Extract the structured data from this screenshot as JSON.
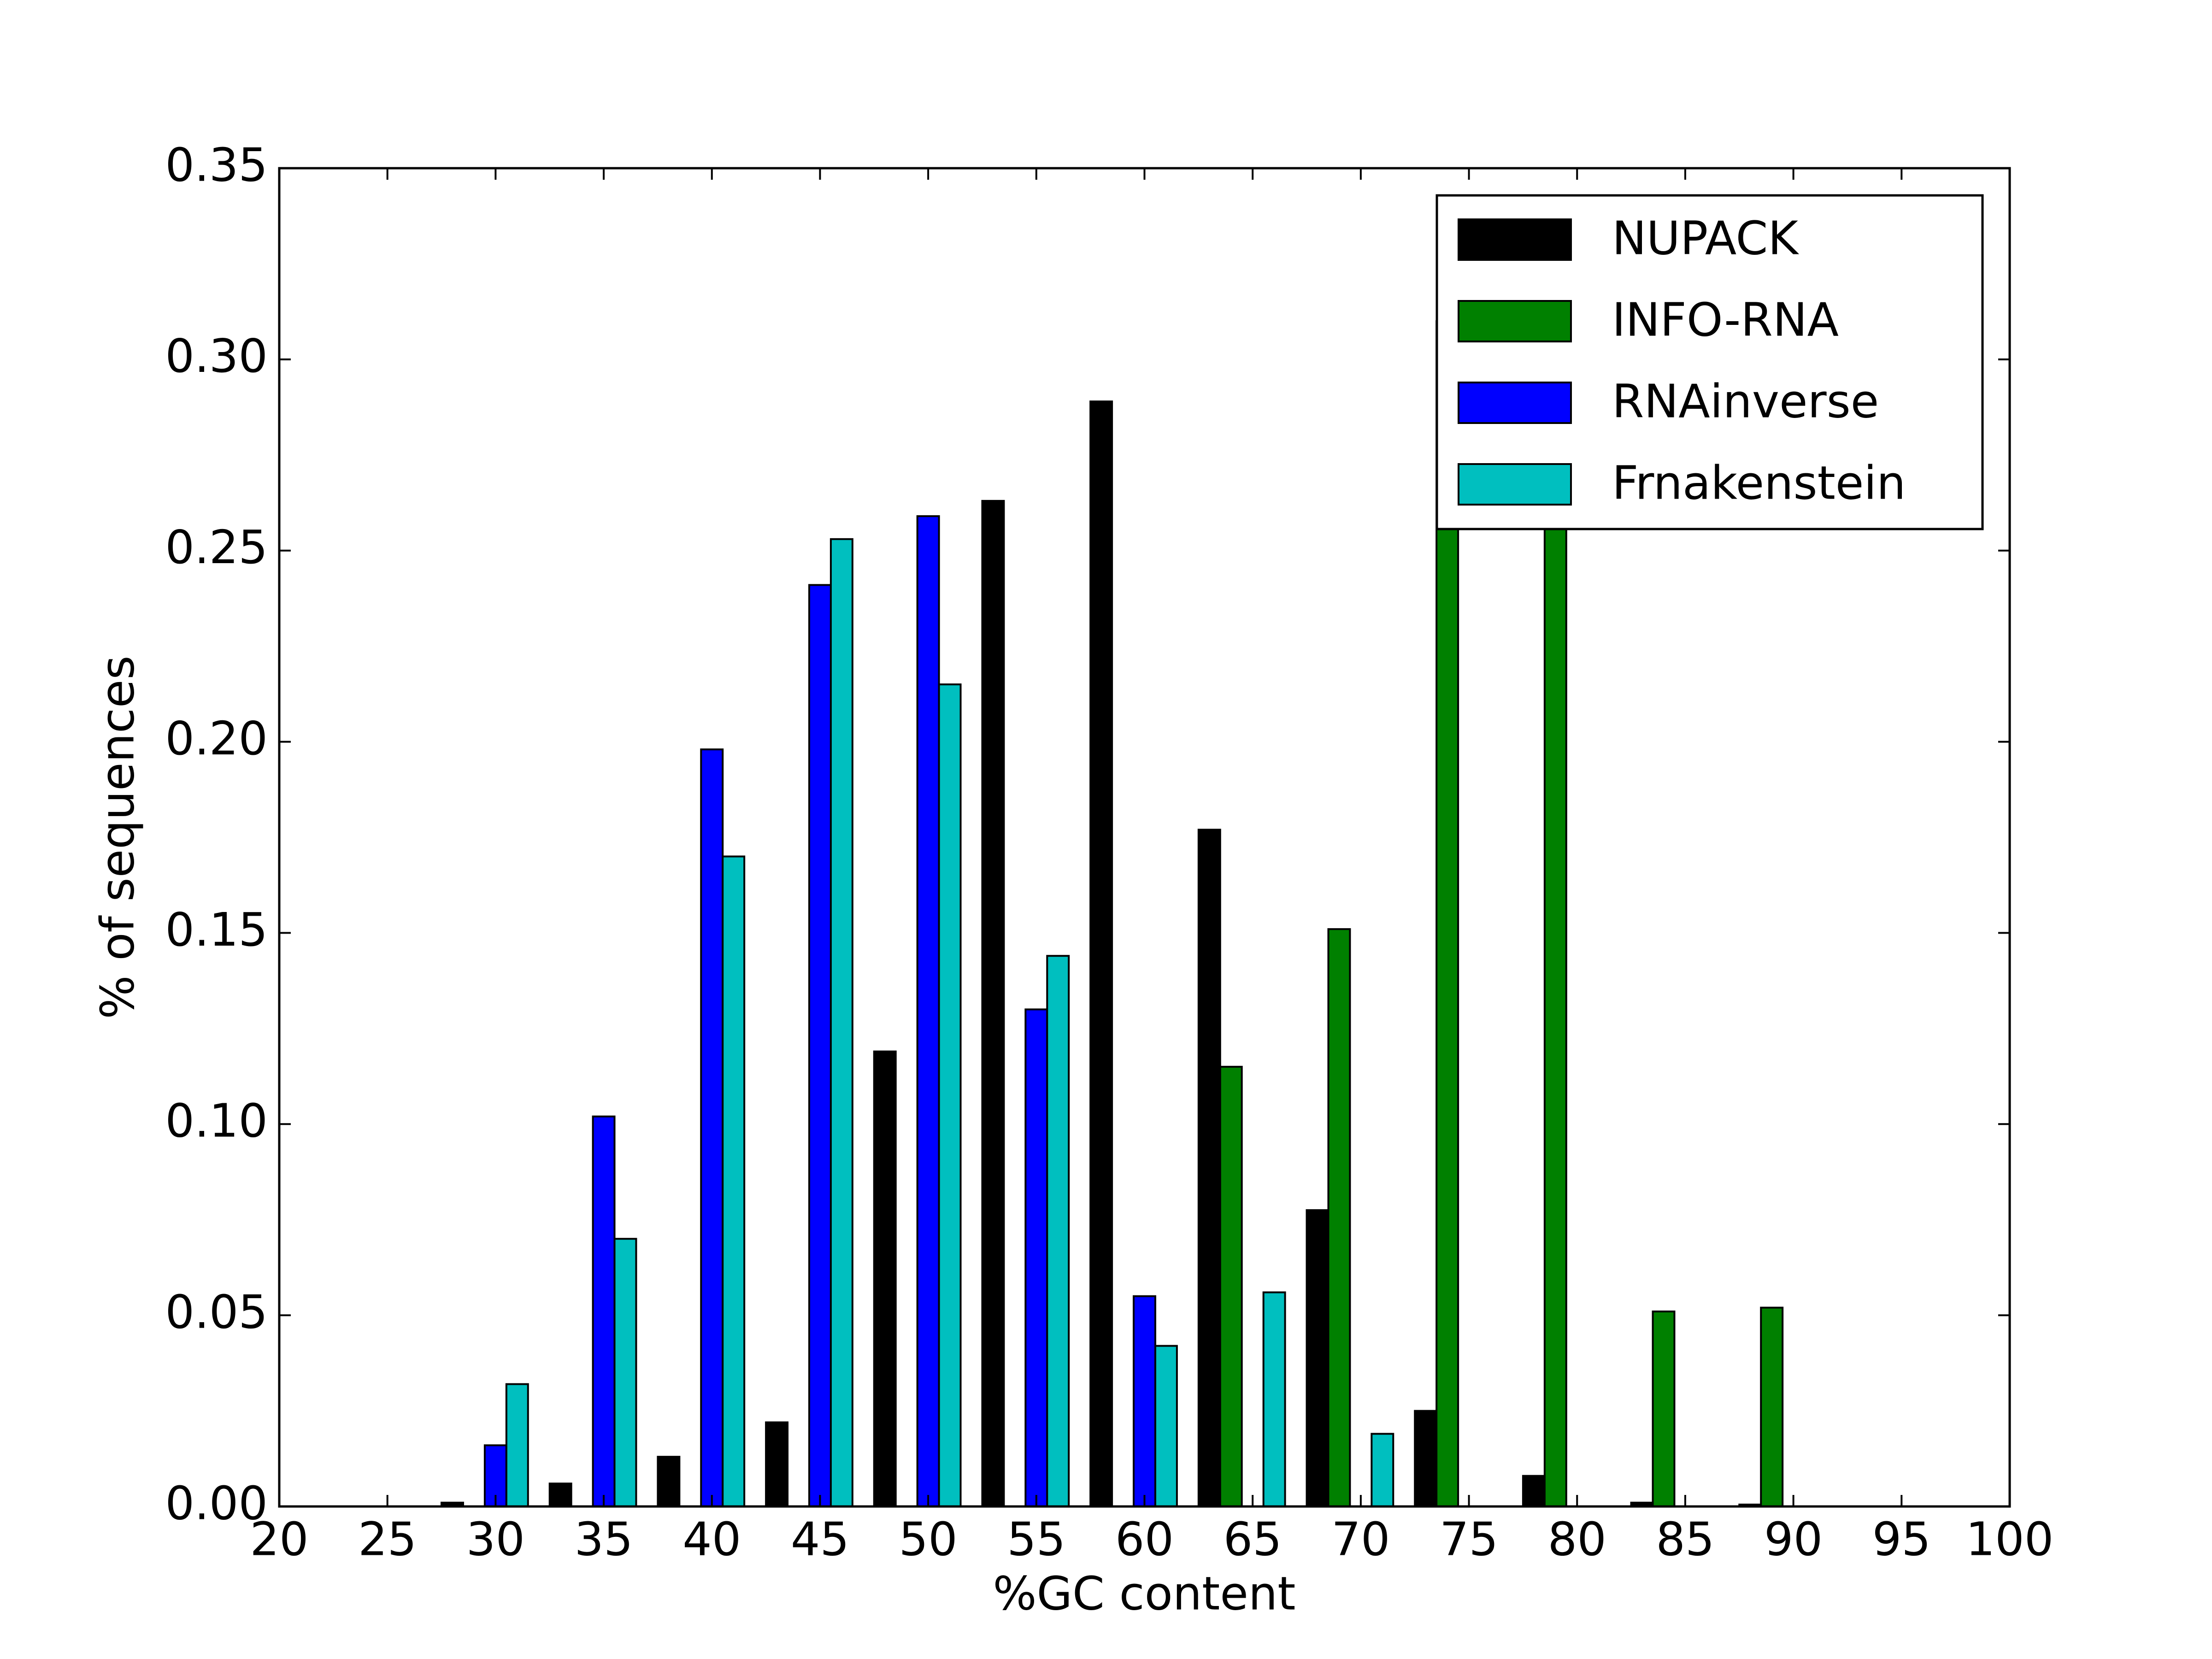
{
  "chart_data": {
    "type": "bar",
    "x_label": "%GC content",
    "y_label": "% of sequences",
    "x": [
      30,
      35,
      40,
      45,
      50,
      55,
      60,
      65,
      70,
      75,
      80,
      85,
      90
    ],
    "series": [
      {
        "name": "NUPACK",
        "color": "#000000",
        "values": [
          0.001,
          0.006,
          0.013,
          0.022,
          0.119,
          0.263,
          0.289,
          0.177,
          0.0775,
          0.025,
          0.008,
          0.001,
          0.0005
        ]
      },
      {
        "name": "INFO-RNA",
        "color": "#008000",
        "values": [
          0,
          0,
          0,
          0,
          0,
          0,
          0,
          0.115,
          0.151,
          0.31,
          0.29,
          0.051,
          0.052
        ]
      },
      {
        "name": "RNAinverse",
        "color": "#0000ff",
        "values": [
          0.016,
          0.102,
          0.198,
          0.241,
          0.259,
          0.13,
          0.055,
          0,
          0,
          0,
          0,
          0,
          0
        ]
      },
      {
        "name": "Frnakenstein",
        "color": "#00bfbf",
        "values": [
          0.032,
          0.07,
          0.17,
          0.253,
          0.215,
          0.144,
          0.042,
          0.056,
          0.019,
          0,
          0,
          0,
          0
        ]
      }
    ],
    "xlim": [
      20,
      100
    ],
    "xticks": [
      20,
      25,
      30,
      35,
      40,
      45,
      50,
      55,
      60,
      65,
      70,
      75,
      80,
      85,
      90,
      95,
      100
    ],
    "ylim": [
      0,
      0.35
    ],
    "yticks": [
      {
        "value": 0,
        "label": "0.00"
      },
      {
        "value": 0.05,
        "label": "0.05"
      },
      {
        "value": 0.1,
        "label": "0.10"
      },
      {
        "value": 0.15,
        "label": "0.15"
      },
      {
        "value": 0.2,
        "label": "0.20"
      },
      {
        "value": 0.25,
        "label": "0.25"
      },
      {
        "value": 0.3,
        "label": "0.30"
      },
      {
        "value": 0.35,
        "label": "0.35"
      }
    ],
    "legend": "upper right",
    "grid": false
  }
}
